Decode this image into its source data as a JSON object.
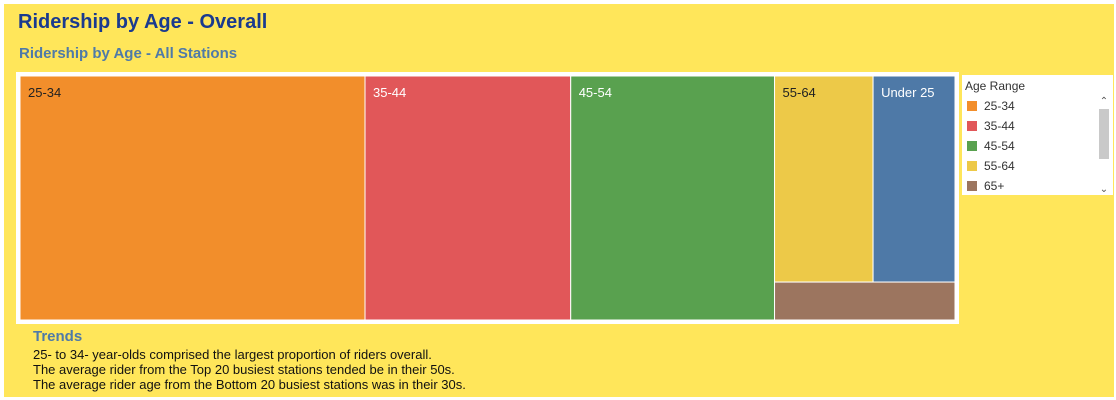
{
  "header": {
    "title": "Ridership by Age - Overall",
    "subtitle": "Ridership by Age - All Stations"
  },
  "legend": {
    "title": "Age Range",
    "items": [
      {
        "label": "25-34",
        "color": "#f28e2b"
      },
      {
        "label": "35-44",
        "color": "#e15759"
      },
      {
        "label": "45-54",
        "color": "#59a14f"
      },
      {
        "label": "55-64",
        "color": "#edc948"
      },
      {
        "label": "65+",
        "color": "#9c755f"
      }
    ]
  },
  "chart_data": {
    "type": "treemap",
    "title": "Ridership by Age - All Stations",
    "unit": "relative share (estimated from tile area, %)",
    "items": [
      {
        "label": "25-34",
        "value": 36.9,
        "color": "#f28e2b",
        "text_color": "#222222"
      },
      {
        "label": "35-44",
        "value": 22.0,
        "color": "#e15759",
        "text_color": "#ffffff"
      },
      {
        "label": "45-54",
        "value": 21.8,
        "color": "#59a14f",
        "text_color": "#ffffff"
      },
      {
        "label": "55-64",
        "value": 8.9,
        "color": "#edc948",
        "text_color": "#222222"
      },
      {
        "label": "Under 25",
        "value": 7.4,
        "color": "#4e79a7",
        "text_color": "#ffffff"
      },
      {
        "label": "65+",
        "value": 3.0,
        "color": "#9c755f",
        "text_color": "#ffffff",
        "show_label": false
      }
    ]
  },
  "trends": {
    "title": "Trends",
    "lines": [
      "25- to 34- year-olds comprised the largest proportion of riders overall.",
      "The average rider from the Top 20 busiest stations tended be in their 50s.",
      "The average rider age from the Bottom 20 busiest stations was in their 30s."
    ]
  }
}
